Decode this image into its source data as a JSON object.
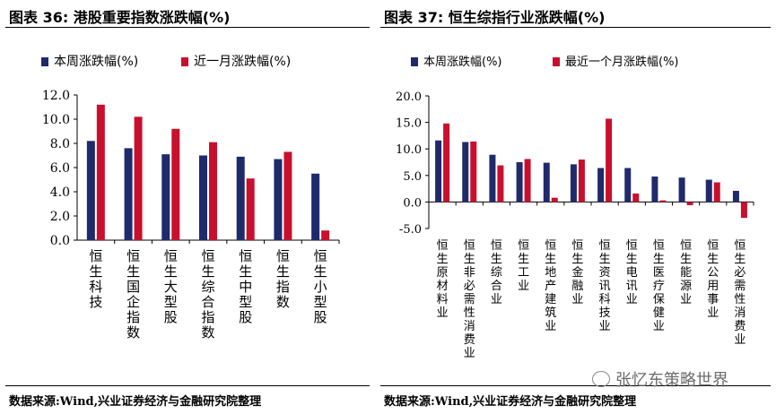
{
  "colors": {
    "series1": "#1F2A6B",
    "series2": "#C8102E",
    "axis": "#000000"
  },
  "watermark": {
    "text": "张忆东策略世界",
    "icon": "wechat-icon"
  },
  "chart_data": [
    {
      "id": "left",
      "type": "bar",
      "title": "图表 36:  港股重要指数涨跌幅(%)",
      "source": "数据来源:Wind,兴业证券经济与金融研究院整理",
      "series": [
        {
          "name": "本周涨跌幅(%)",
          "values": [
            8.2,
            7.6,
            7.1,
            7.0,
            6.9,
            6.7,
            5.5
          ]
        },
        {
          "name": "近一月涨跌幅(%)",
          "values": [
            11.2,
            10.2,
            9.2,
            8.1,
            5.1,
            7.3,
            0.8
          ]
        }
      ],
      "categories": [
        "恒生科技",
        "恒生国企指数",
        "恒生大型股",
        "恒生综合指数",
        "恒生中型股",
        "恒生指数",
        "恒生小型股"
      ],
      "ylim": [
        0,
        12
      ],
      "yticks": [
        "0.0",
        "2.0",
        "4.0",
        "6.0",
        "8.0",
        "10.0",
        "12.0"
      ],
      "ytick_values": [
        0,
        2,
        4,
        6,
        8,
        10,
        12
      ],
      "legend": "top-left"
    },
    {
      "id": "right",
      "type": "bar",
      "title": "图表 37:  恒生综指行业涨跌幅(%)",
      "source": "数据来源:Wind,兴业证券经济与金融研究院整理",
      "series": [
        {
          "name": "本周涨跌幅(%)",
          "values": [
            11.6,
            11.3,
            8.9,
            7.5,
            7.4,
            7.1,
            6.4,
            6.4,
            4.8,
            4.6,
            4.2,
            2.1
          ]
        },
        {
          "name": "最近一个月涨跌幅(%)",
          "values": [
            14.8,
            11.4,
            6.9,
            8.1,
            0.8,
            8.0,
            15.7,
            1.6,
            0.3,
            -0.6,
            3.7,
            -3.0
          ]
        }
      ],
      "categories": [
        "恒生原材料业",
        "恒生非必需性消费业",
        "恒生综合业",
        "恒生工业",
        "恒生地产建筑业",
        "恒生金融业",
        "恒生资讯科技业",
        "恒生电讯业",
        "恒生医疗保健业",
        "恒生能源业",
        "恒生公用事业",
        "恒生必需性消费业"
      ],
      "ylim": [
        -5,
        20
      ],
      "yticks": [
        "-5.0",
        "0.0",
        "5.0",
        "10.0",
        "15.0",
        "20.0"
      ],
      "ytick_values": [
        -5,
        0,
        5,
        10,
        15,
        20
      ],
      "legend": "top-left"
    }
  ]
}
